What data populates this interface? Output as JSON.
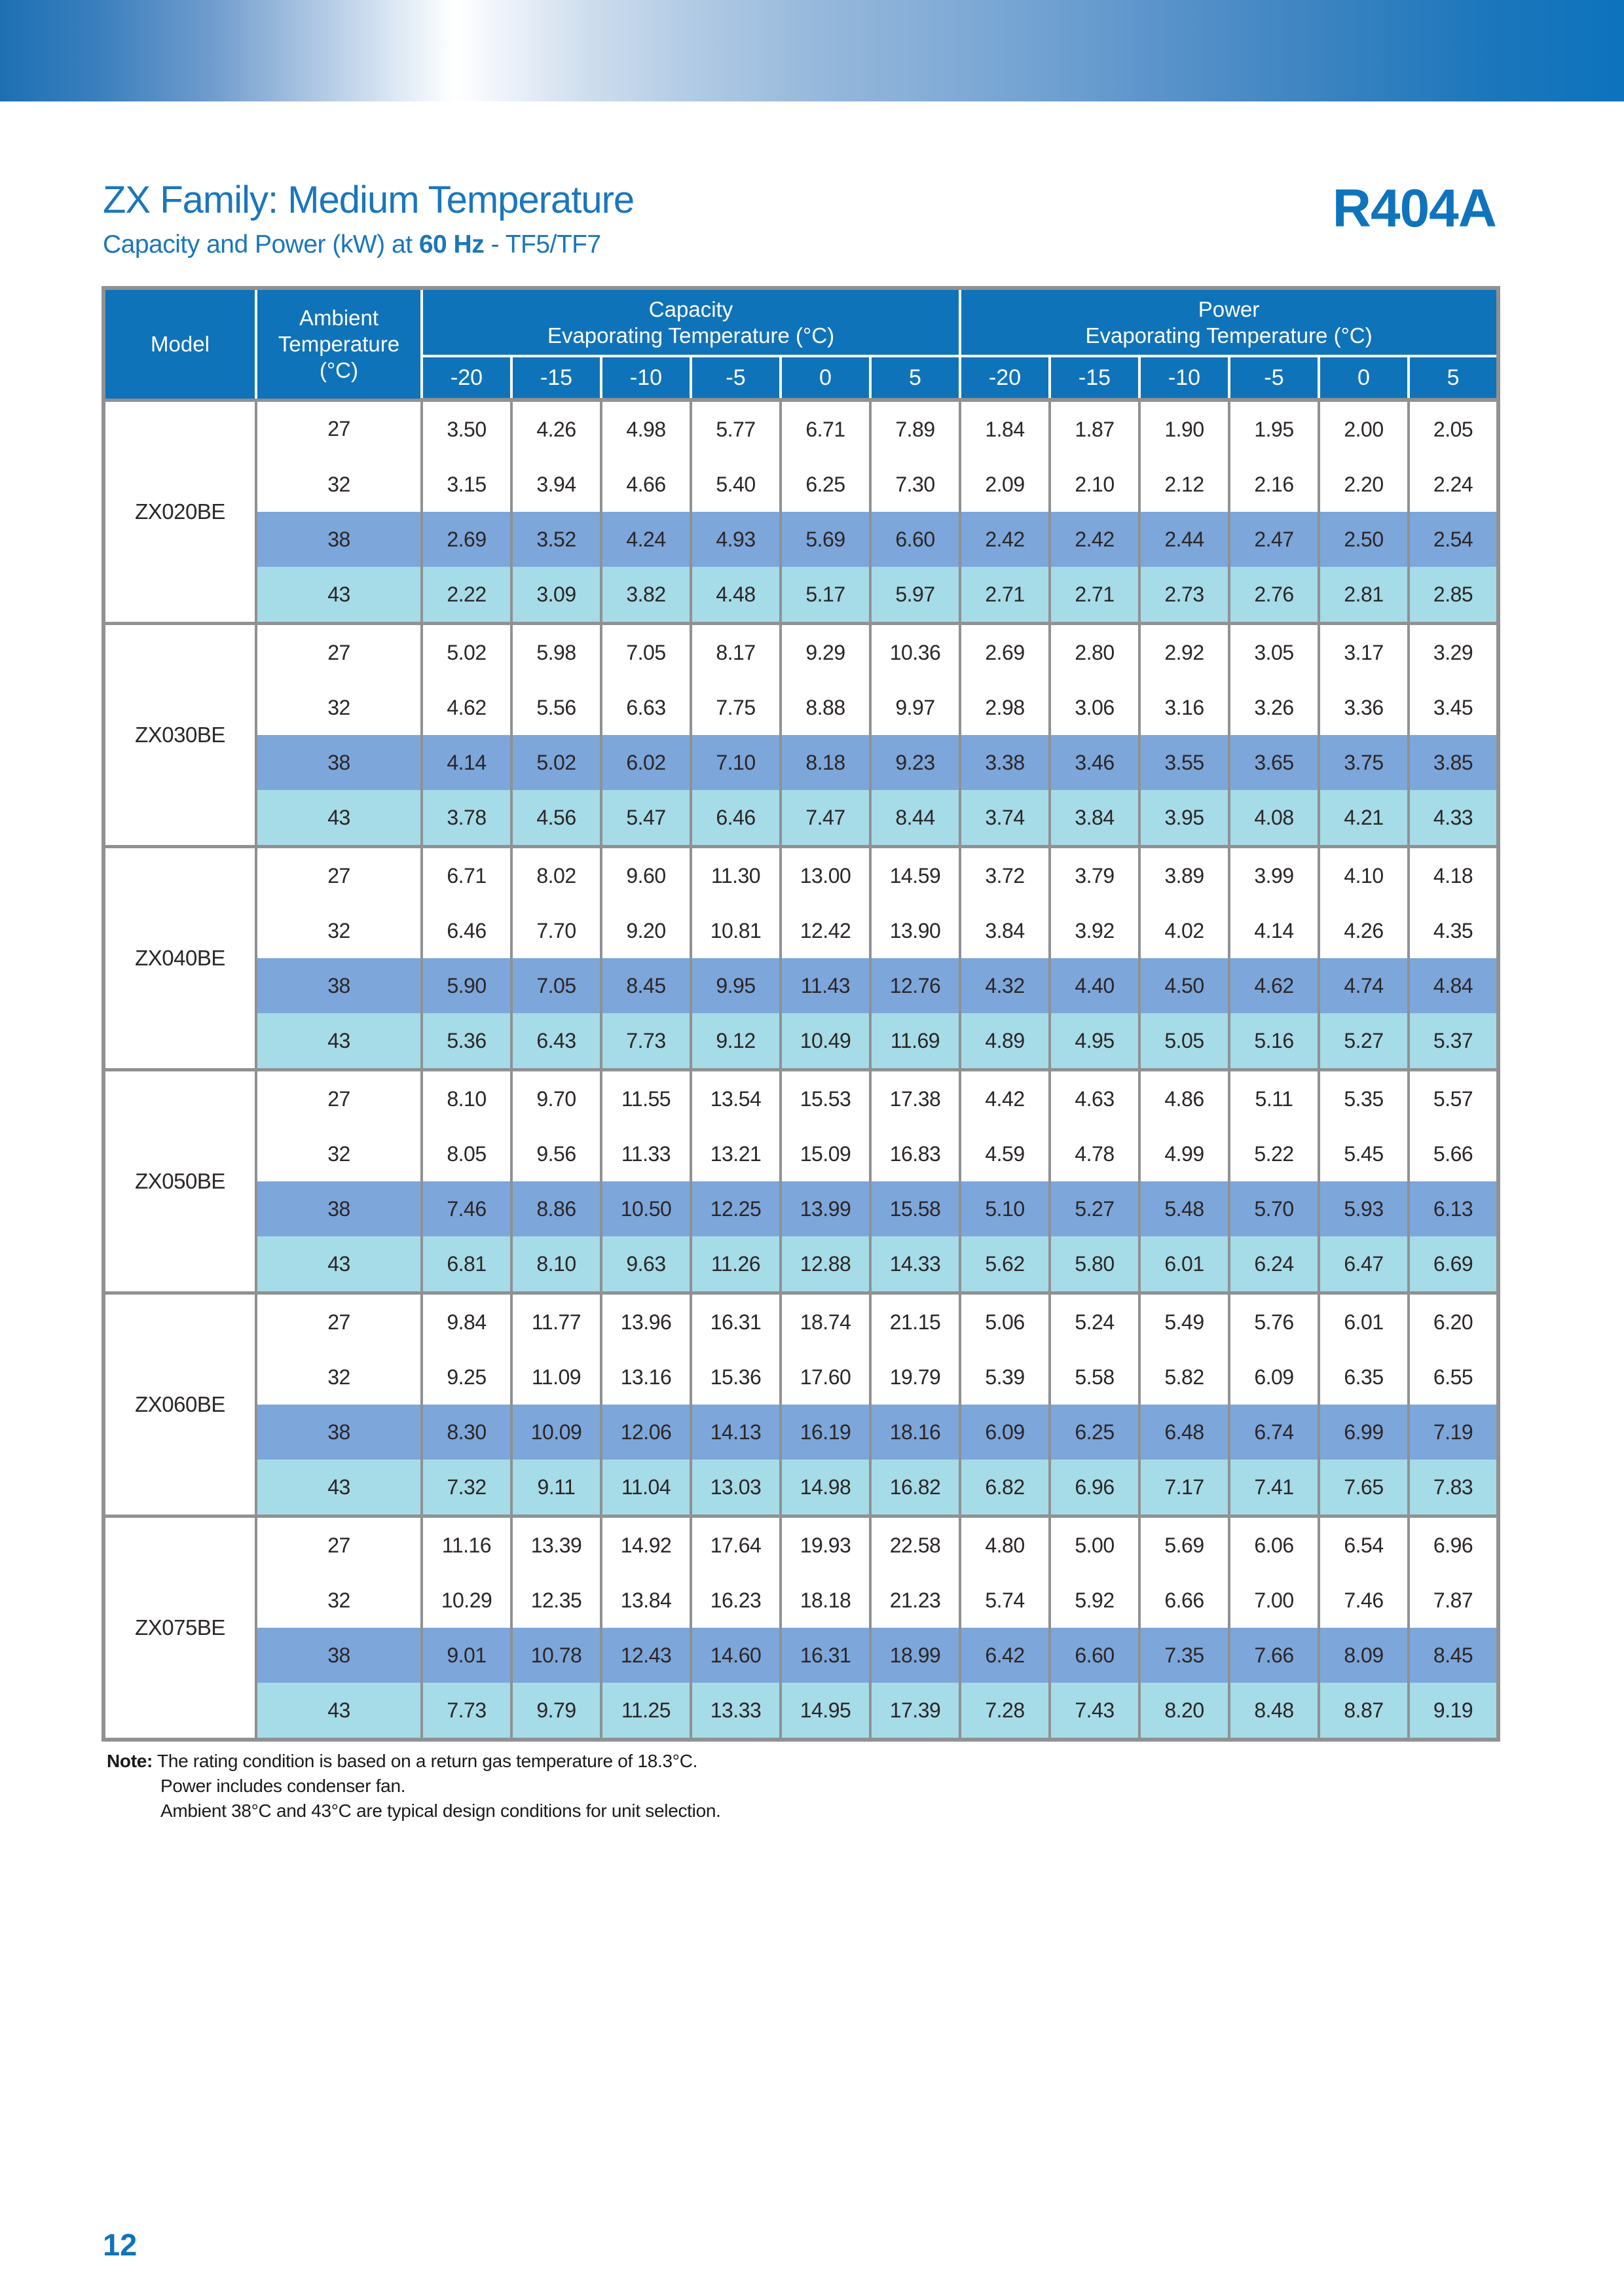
{
  "page": {
    "title": "ZX Family: Medium Temperature",
    "subtitle_prefix": "Capacity and Power (kW) at ",
    "subtitle_bold": "60 Hz",
    "subtitle_suffix": " - TF5/TF7",
    "refrigerant": "R404A",
    "note_label": "Note:",
    "note_lines": [
      "The rating condition is based on a return gas temperature of 18.3°C.",
      "Power includes condenser fan.",
      "Ambient 38°C and 43°C are typical design conditions for unit selection."
    ],
    "page_number": "12"
  },
  "colors": {
    "accent_blue": "#1b76bc",
    "header_blue": "#0f73ba",
    "row_38_blue": "#7da6da",
    "row_43_cyan": "#a6dbe8",
    "grid_gray": "#8f9193",
    "cell_text": "#2b2627"
  },
  "table": {
    "col_model": "Model",
    "col_ambient": "Ambient\nTemperature\n(°C)",
    "capacity_group": "Capacity\nEvaporating Temperature (°C)",
    "power_group": "Power\nEvaporating Temperature (°C)",
    "evap_temps": [
      "-20",
      "-15",
      "-10",
      "-5",
      "0",
      "5"
    ],
    "models": [
      {
        "name": "ZX020BE",
        "rows": [
          {
            "ambient": "27",
            "capacity": [
              "3.50",
              "4.26",
              "4.98",
              "5.77",
              "6.71",
              "7.89"
            ],
            "power": [
              "1.84",
              "1.87",
              "1.90",
              "1.95",
              "2.00",
              "2.05"
            ]
          },
          {
            "ambient": "32",
            "capacity": [
              "3.15",
              "3.94",
              "4.66",
              "5.40",
              "6.25",
              "7.30"
            ],
            "power": [
              "2.09",
              "2.10",
              "2.12",
              "2.16",
              "2.20",
              "2.24"
            ]
          },
          {
            "ambient": "38",
            "capacity": [
              "2.69",
              "3.52",
              "4.24",
              "4.93",
              "5.69",
              "6.60"
            ],
            "power": [
              "2.42",
              "2.42",
              "2.44",
              "2.47",
              "2.50",
              "2.54"
            ]
          },
          {
            "ambient": "43",
            "capacity": [
              "2.22",
              "3.09",
              "3.82",
              "4.48",
              "5.17",
              "5.97"
            ],
            "power": [
              "2.71",
              "2.71",
              "2.73",
              "2.76",
              "2.81",
              "2.85"
            ]
          }
        ]
      },
      {
        "name": "ZX030BE",
        "rows": [
          {
            "ambient": "27",
            "capacity": [
              "5.02",
              "5.98",
              "7.05",
              "8.17",
              "9.29",
              "10.36"
            ],
            "power": [
              "2.69",
              "2.80",
              "2.92",
              "3.05",
              "3.17",
              "3.29"
            ]
          },
          {
            "ambient": "32",
            "capacity": [
              "4.62",
              "5.56",
              "6.63",
              "7.75",
              "8.88",
              "9.97"
            ],
            "power": [
              "2.98",
              "3.06",
              "3.16",
              "3.26",
              "3.36",
              "3.45"
            ]
          },
          {
            "ambient": "38",
            "capacity": [
              "4.14",
              "5.02",
              "6.02",
              "7.10",
              "8.18",
              "9.23"
            ],
            "power": [
              "3.38",
              "3.46",
              "3.55",
              "3.65",
              "3.75",
              "3.85"
            ]
          },
          {
            "ambient": "43",
            "capacity": [
              "3.78",
              "4.56",
              "5.47",
              "6.46",
              "7.47",
              "8.44"
            ],
            "power": [
              "3.74",
              "3.84",
              "3.95",
              "4.08",
              "4.21",
              "4.33"
            ]
          }
        ]
      },
      {
        "name": "ZX040BE",
        "rows": [
          {
            "ambient": "27",
            "capacity": [
              "6.71",
              "8.02",
              "9.60",
              "11.30",
              "13.00",
              "14.59"
            ],
            "power": [
              "3.72",
              "3.79",
              "3.89",
              "3.99",
              "4.10",
              "4.18"
            ]
          },
          {
            "ambient": "32",
            "capacity": [
              "6.46",
              "7.70",
              "9.20",
              "10.81",
              "12.42",
              "13.90"
            ],
            "power": [
              "3.84",
              "3.92",
              "4.02",
              "4.14",
              "4.26",
              "4.35"
            ]
          },
          {
            "ambient": "38",
            "capacity": [
              "5.90",
              "7.05",
              "8.45",
              "9.95",
              "11.43",
              "12.76"
            ],
            "power": [
              "4.32",
              "4.40",
              "4.50",
              "4.62",
              "4.74",
              "4.84"
            ]
          },
          {
            "ambient": "43",
            "capacity": [
              "5.36",
              "6.43",
              "7.73",
              "9.12",
              "10.49",
              "11.69"
            ],
            "power": [
              "4.89",
              "4.95",
              "5.05",
              "5.16",
              "5.27",
              "5.37"
            ]
          }
        ]
      },
      {
        "name": "ZX050BE",
        "rows": [
          {
            "ambient": "27",
            "capacity": [
              "8.10",
              "9.70",
              "11.55",
              "13.54",
              "15.53",
              "17.38"
            ],
            "power": [
              "4.42",
              "4.63",
              "4.86",
              "5.11",
              "5.35",
              "5.57"
            ]
          },
          {
            "ambient": "32",
            "capacity": [
              "8.05",
              "9.56",
              "11.33",
              "13.21",
              "15.09",
              "16.83"
            ],
            "power": [
              "4.59",
              "4.78",
              "4.99",
              "5.22",
              "5.45",
              "5.66"
            ]
          },
          {
            "ambient": "38",
            "capacity": [
              "7.46",
              "8.86",
              "10.50",
              "12.25",
              "13.99",
              "15.58"
            ],
            "power": [
              "5.10",
              "5.27",
              "5.48",
              "5.70",
              "5.93",
              "6.13"
            ]
          },
          {
            "ambient": "43",
            "capacity": [
              "6.81",
              "8.10",
              "9.63",
              "11.26",
              "12.88",
              "14.33"
            ],
            "power": [
              "5.62",
              "5.80",
              "6.01",
              "6.24",
              "6.47",
              "6.69"
            ]
          }
        ]
      },
      {
        "name": "ZX060BE",
        "rows": [
          {
            "ambient": "27",
            "capacity": [
              "9.84",
              "11.77",
              "13.96",
              "16.31",
              "18.74",
              "21.15"
            ],
            "power": [
              "5.06",
              "5.24",
              "5.49",
              "5.76",
              "6.01",
              "6.20"
            ]
          },
          {
            "ambient": "32",
            "capacity": [
              "9.25",
              "11.09",
              "13.16",
              "15.36",
              "17.60",
              "19.79"
            ],
            "power": [
              "5.39",
              "5.58",
              "5.82",
              "6.09",
              "6.35",
              "6.55"
            ]
          },
          {
            "ambient": "38",
            "capacity": [
              "8.30",
              "10.09",
              "12.06",
              "14.13",
              "16.19",
              "18.16"
            ],
            "power": [
              "6.09",
              "6.25",
              "6.48",
              "6.74",
              "6.99",
              "7.19"
            ]
          },
          {
            "ambient": "43",
            "capacity": [
              "7.32",
              "9.11",
              "11.04",
              "13.03",
              "14.98",
              "16.82"
            ],
            "power": [
              "6.82",
              "6.96",
              "7.17",
              "7.41",
              "7.65",
              "7.83"
            ]
          }
        ]
      },
      {
        "name": "ZX075BE",
        "rows": [
          {
            "ambient": "27",
            "capacity": [
              "11.16",
              "13.39",
              "14.92",
              "17.64",
              "19.93",
              "22.58"
            ],
            "power": [
              "4.80",
              "5.00",
              "5.69",
              "6.06",
              "6.54",
              "6.96"
            ]
          },
          {
            "ambient": "32",
            "capacity": [
              "10.29",
              "12.35",
              "13.84",
              "16.23",
              "18.18",
              "21.23"
            ],
            "power": [
              "5.74",
              "5.92",
              "6.66",
              "7.00",
              "7.46",
              "7.87"
            ]
          },
          {
            "ambient": "38",
            "capacity": [
              "9.01",
              "10.78",
              "12.43",
              "14.60",
              "16.31",
              "18.99"
            ],
            "power": [
              "6.42",
              "6.60",
              "7.35",
              "7.66",
              "8.09",
              "8.45"
            ]
          },
          {
            "ambient": "43",
            "capacity": [
              "7.73",
              "9.79",
              "11.25",
              "13.33",
              "14.95",
              "17.39"
            ],
            "power": [
              "7.28",
              "7.43",
              "8.20",
              "8.48",
              "8.87",
              "9.19"
            ]
          }
        ]
      }
    ]
  }
}
